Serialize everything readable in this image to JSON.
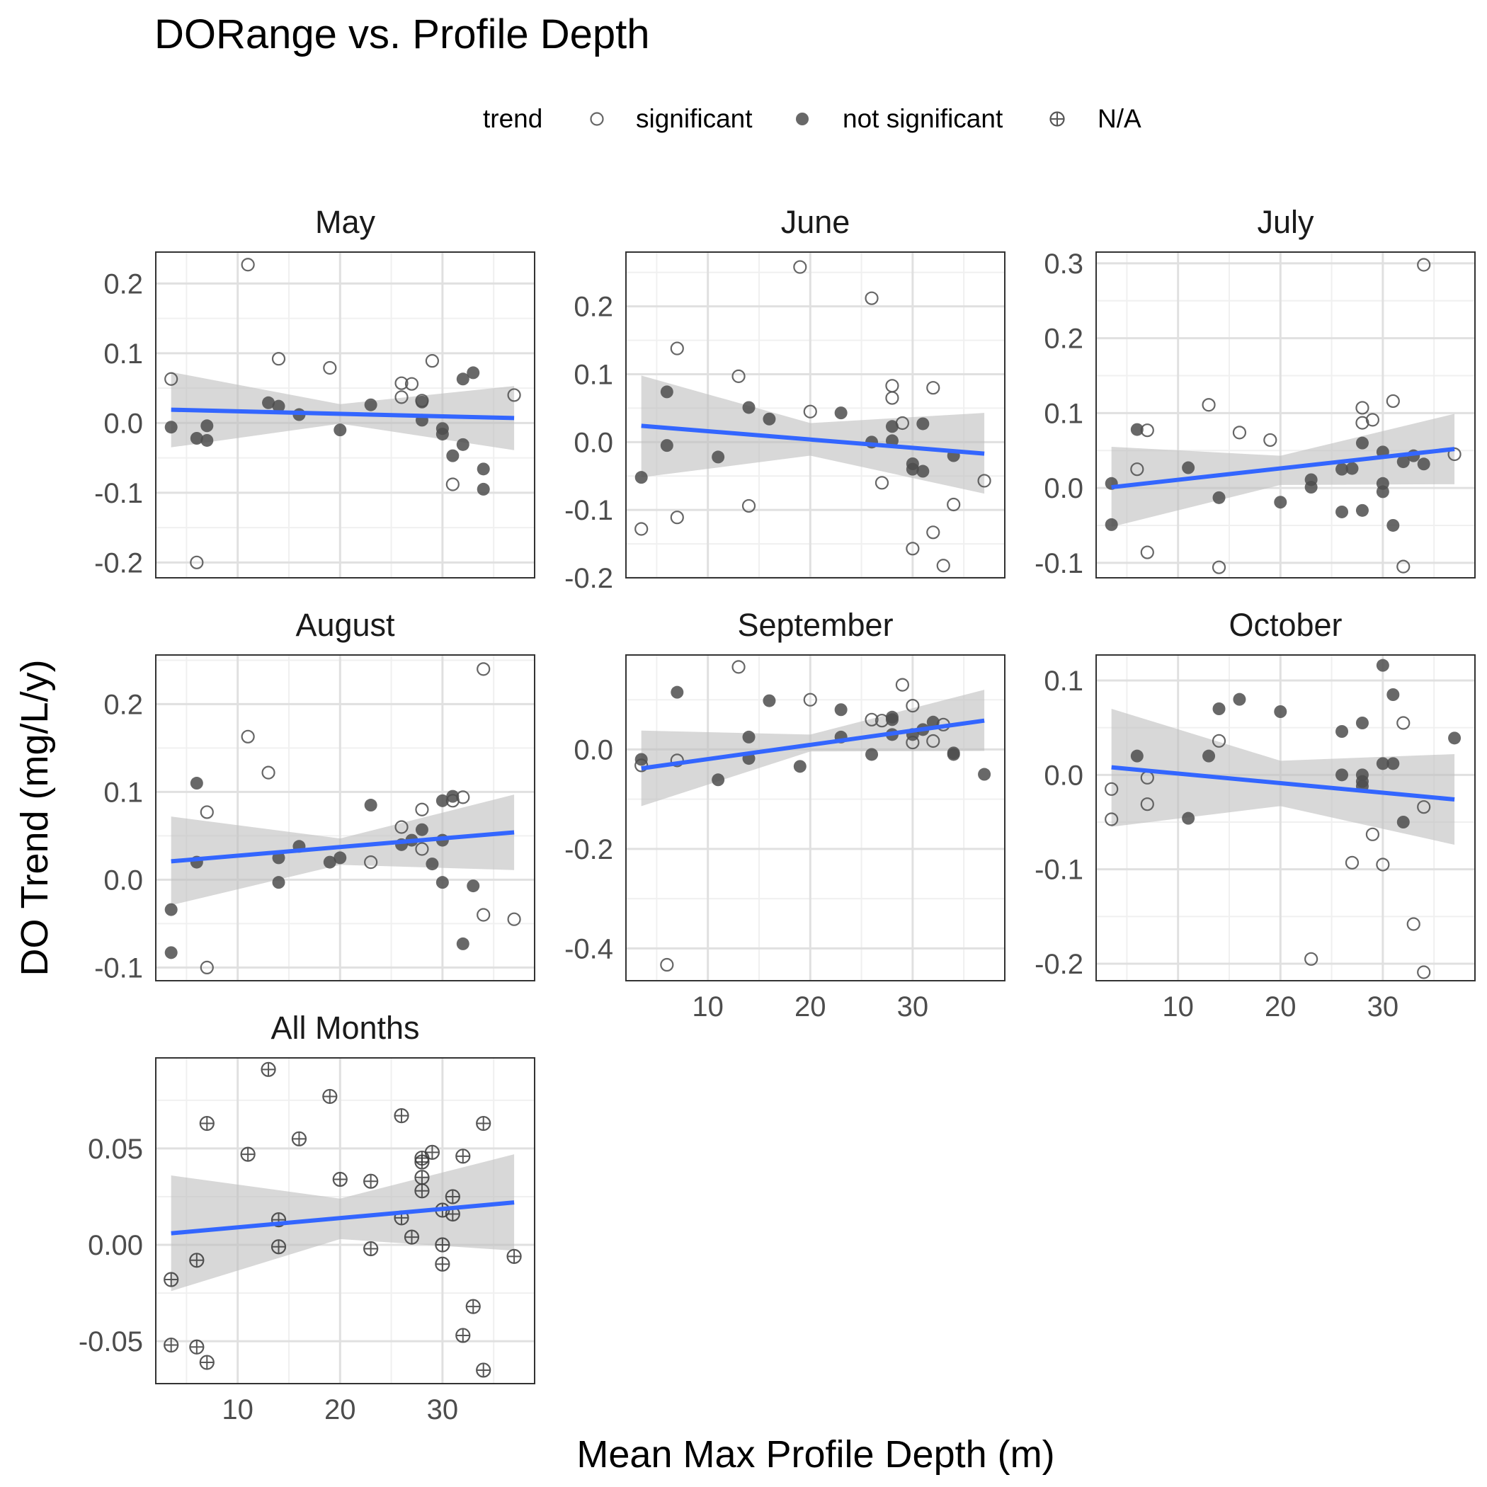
{
  "chart_data": {
    "type": "scatter",
    "title": "DORange vs. Profile Depth",
    "xlabel": "Mean Max Profile Depth (m)",
    "ylabel": "DO Trend (mg/L/y)",
    "legend": {
      "title": "trend",
      "position": "top",
      "entries": [
        {
          "label": "significant",
          "shape": "open-circle"
        },
        {
          "label": "not significant",
          "shape": "filled-circle"
        },
        {
          "label": "N/A",
          "shape": "crossed-circle"
        }
      ]
    },
    "grid": true,
    "fit": "linear regression with 95% confidence band",
    "xlim": [
      2,
      39
    ],
    "xticks": [
      10,
      20,
      30
    ],
    "facets": [
      {
        "name": "May",
        "ylim": [
          -0.222,
          0.245
        ],
        "yticks": [
          -0.2,
          -0.1,
          0.0,
          0.1,
          0.2
        ],
        "ytick_labels": [
          "-0.2",
          "-0.1",
          "0.0",
          "0.1",
          "0.2"
        ],
        "fit_line": [
          [
            3.5,
            0.019
          ],
          [
            37,
            0.007
          ]
        ],
        "fit_band": [
          [
            3.5,
            0.073,
            -0.035
          ],
          [
            20,
            0.027,
            -0.001
          ],
          [
            37,
            0.053,
            -0.039
          ]
        ],
        "significant": [
          [
            3.5,
            0.063
          ],
          [
            11,
            0.227
          ],
          [
            14,
            0.092
          ],
          [
            19,
            0.079
          ],
          [
            26,
            0.057
          ],
          [
            26,
            0.037
          ],
          [
            27,
            0.056
          ],
          [
            28,
            0.032
          ],
          [
            29,
            0.089
          ],
          [
            31,
            -0.088
          ],
          [
            37,
            0.04
          ],
          [
            6,
            -0.2
          ]
        ],
        "not_significant": [
          [
            3.5,
            -0.006
          ],
          [
            6,
            -0.022
          ],
          [
            7,
            -0.025
          ],
          [
            7,
            -0.004
          ],
          [
            13,
            0.029
          ],
          [
            14,
            0.024
          ],
          [
            16,
            0.012
          ],
          [
            20,
            -0.01
          ],
          [
            23,
            0.026
          ],
          [
            28,
            0.004
          ],
          [
            28,
            0.03
          ],
          [
            30,
            -0.008
          ],
          [
            30,
            -0.016
          ],
          [
            31,
            -0.047
          ],
          [
            32,
            0.063
          ],
          [
            32,
            -0.031
          ],
          [
            33,
            0.072
          ],
          [
            34,
            -0.066
          ],
          [
            34,
            -0.095
          ]
        ]
      },
      {
        "name": "June",
        "ylim": [
          -0.2,
          0.28
        ],
        "yticks": [
          -0.2,
          -0.1,
          0.0,
          0.1,
          0.2
        ],
        "ytick_labels": [
          "-0.2",
          "-0.1",
          "0.0",
          "0.1",
          "0.2"
        ],
        "fit_line": [
          [
            3.5,
            0.024
          ],
          [
            37,
            -0.017
          ]
        ],
        "fit_band": [
          [
            3.5,
            0.098,
            -0.052
          ],
          [
            20,
            0.028,
            -0.02
          ],
          [
            37,
            0.043,
            -0.076
          ]
        ],
        "significant": [
          [
            3.5,
            -0.128
          ],
          [
            7,
            0.138
          ],
          [
            7,
            -0.111
          ],
          [
            13,
            0.097
          ],
          [
            14,
            -0.094
          ],
          [
            19,
            0.258
          ],
          [
            20,
            0.045
          ],
          [
            26,
            0.212
          ],
          [
            27,
            -0.06
          ],
          [
            28,
            0.083
          ],
          [
            28,
            0.065
          ],
          [
            29,
            0.028
          ],
          [
            30,
            -0.157
          ],
          [
            32,
            0.08
          ],
          [
            32,
            -0.133
          ],
          [
            33,
            -0.182
          ],
          [
            34,
            -0.092
          ],
          [
            37,
            -0.057
          ]
        ],
        "not_significant": [
          [
            3.5,
            -0.052
          ],
          [
            6,
            0.074
          ],
          [
            6,
            -0.005
          ],
          [
            11,
            -0.022
          ],
          [
            14,
            0.051
          ],
          [
            16,
            0.034
          ],
          [
            23,
            0.043
          ],
          [
            26,
            0.0
          ],
          [
            28,
            0.002
          ],
          [
            28,
            0.023
          ],
          [
            30,
            -0.032
          ],
          [
            30,
            -0.04
          ],
          [
            31,
            0.027
          ],
          [
            31,
            -0.043
          ],
          [
            34,
            -0.02
          ]
        ]
      },
      {
        "name": "July",
        "ylim": [
          -0.12,
          0.315
        ],
        "yticks": [
          -0.1,
          0.0,
          0.1,
          0.2,
          0.3
        ],
        "ytick_labels": [
          "-0.1",
          "0.0",
          "0.1",
          "0.2",
          "0.3"
        ],
        "fit_line": [
          [
            3.5,
            0.001
          ],
          [
            37,
            0.052
          ]
        ],
        "fit_band": [
          [
            3.5,
            0.055,
            -0.052
          ],
          [
            20,
            0.043,
            0.004
          ],
          [
            37,
            0.099,
            0.005
          ]
        ],
        "significant": [
          [
            6,
            0.025
          ],
          [
            7,
            0.077
          ],
          [
            7,
            -0.086
          ],
          [
            13,
            0.111
          ],
          [
            14,
            -0.106
          ],
          [
            16,
            0.074
          ],
          [
            19,
            0.064
          ],
          [
            28,
            0.107
          ],
          [
            28,
            0.087
          ],
          [
            29,
            0.091
          ],
          [
            31,
            0.116
          ],
          [
            32,
            -0.105
          ],
          [
            34,
            0.298
          ],
          [
            37,
            0.045
          ]
        ],
        "not_significant": [
          [
            3.5,
            0.006
          ],
          [
            3.5,
            -0.049
          ],
          [
            6,
            0.078
          ],
          [
            11,
            0.027
          ],
          [
            14,
            -0.013
          ],
          [
            20,
            -0.019
          ],
          [
            23,
            0.001
          ],
          [
            23,
            0.011
          ],
          [
            26,
            -0.032
          ],
          [
            26,
            0.025
          ],
          [
            27,
            0.026
          ],
          [
            28,
            0.06
          ],
          [
            28,
            -0.03
          ],
          [
            30,
            0.048
          ],
          [
            30,
            0.006
          ],
          [
            30,
            -0.005
          ],
          [
            31,
            -0.05
          ],
          [
            32,
            0.035
          ],
          [
            33,
            0.043
          ],
          [
            34,
            0.032
          ]
        ]
      },
      {
        "name": "August",
        "ylim": [
          -0.115,
          0.256
        ],
        "yticks": [
          -0.1,
          0.0,
          0.1,
          0.2
        ],
        "ytick_labels": [
          "-0.1",
          "0.0",
          "0.1",
          "0.2"
        ],
        "fit_line": [
          [
            3.5,
            0.021
          ],
          [
            37,
            0.054
          ]
        ],
        "fit_band": [
          [
            3.5,
            0.072,
            -0.029
          ],
          [
            20,
            0.047,
            0.017
          ],
          [
            37,
            0.097,
            0.011
          ]
        ],
        "significant": [
          [
            7,
            0.077
          ],
          [
            7,
            -0.1
          ],
          [
            11,
            0.163
          ],
          [
            13,
            0.122
          ],
          [
            23,
            0.02
          ],
          [
            26,
            0.06
          ],
          [
            28,
            0.08
          ],
          [
            28,
            0.035
          ],
          [
            31,
            0.09
          ],
          [
            32,
            0.094
          ],
          [
            34,
            0.24
          ],
          [
            34,
            -0.04
          ],
          [
            37,
            -0.045
          ]
        ],
        "not_significant": [
          [
            3.5,
            -0.034
          ],
          [
            3.5,
            -0.083
          ],
          [
            6,
            0.11
          ],
          [
            6,
            0.02
          ],
          [
            14,
            0.025
          ],
          [
            14,
            -0.003
          ],
          [
            16,
            0.038
          ],
          [
            19,
            0.02
          ],
          [
            20,
            0.025
          ],
          [
            23,
            0.085
          ],
          [
            26,
            0.04
          ],
          [
            27,
            0.045
          ],
          [
            28,
            0.057
          ],
          [
            29,
            0.018
          ],
          [
            30,
            0.09
          ],
          [
            30,
            0.045
          ],
          [
            30,
            -0.003
          ],
          [
            31,
            0.095
          ],
          [
            32,
            -0.073
          ],
          [
            33,
            -0.007
          ]
        ]
      },
      {
        "name": "September",
        "ylim": [
          -0.465,
          0.19
        ],
        "yticks": [
          -0.4,
          -0.2,
          0.0
        ],
        "ytick_labels": [
          "-0.4",
          "-0.2",
          "0.0"
        ],
        "fit_line": [
          [
            3.5,
            -0.038
          ],
          [
            37,
            0.058
          ]
        ],
        "fit_band": [
          [
            3.5,
            0.038,
            -0.114
          ],
          [
            20,
            0.03,
            -0.004
          ],
          [
            37,
            0.12,
            -0.003
          ]
        ],
        "significant": [
          [
            3.5,
            -0.032
          ],
          [
            6,
            -0.433
          ],
          [
            7,
            -0.022
          ],
          [
            13,
            0.166
          ],
          [
            20,
            0.1
          ],
          [
            26,
            0.06
          ],
          [
            27,
            0.058
          ],
          [
            29,
            0.13
          ],
          [
            30,
            0.088
          ],
          [
            30,
            0.014
          ],
          [
            32,
            0.017
          ],
          [
            33,
            0.05
          ]
        ],
        "not_significant": [
          [
            3.5,
            -0.02
          ],
          [
            7,
            0.115
          ],
          [
            11,
            -0.061
          ],
          [
            14,
            0.025
          ],
          [
            14,
            -0.018
          ],
          [
            16,
            0.098
          ],
          [
            19,
            -0.034
          ],
          [
            23,
            0.08
          ],
          [
            23,
            0.025
          ],
          [
            26,
            -0.01
          ],
          [
            28,
            0.065
          ],
          [
            28,
            0.03
          ],
          [
            28,
            0.06
          ],
          [
            30,
            0.03
          ],
          [
            31,
            0.04
          ],
          [
            32,
            0.055
          ],
          [
            34,
            -0.01
          ],
          [
            34,
            -0.007
          ],
          [
            37,
            -0.05
          ]
        ]
      },
      {
        "name": "October",
        "ylim": [
          -0.218,
          0.127
        ],
        "yticks": [
          -0.2,
          -0.1,
          0.0,
          0.1
        ],
        "ytick_labels": [
          "-0.2",
          "-0.1",
          "0.0",
          "0.1"
        ],
        "fit_line": [
          [
            3.5,
            0.008
          ],
          [
            37,
            -0.026
          ]
        ],
        "fit_band": [
          [
            3.5,
            0.07,
            -0.055
          ],
          [
            20,
            0.015,
            -0.033
          ],
          [
            37,
            0.022,
            -0.074
          ]
        ],
        "significant": [
          [
            3.5,
            -0.015
          ],
          [
            3.5,
            -0.047
          ],
          [
            7,
            -0.003
          ],
          [
            7,
            -0.031
          ],
          [
            14,
            0.036
          ],
          [
            23,
            -0.195
          ],
          [
            27,
            -0.093
          ],
          [
            29,
            -0.063
          ],
          [
            30,
            -0.095
          ],
          [
            32,
            0.055
          ],
          [
            33,
            -0.158
          ],
          [
            34,
            -0.209
          ],
          [
            34,
            -0.034
          ]
        ],
        "not_significant": [
          [
            6,
            0.02
          ],
          [
            11,
            -0.046
          ],
          [
            13,
            0.02
          ],
          [
            14,
            0.07
          ],
          [
            16,
            0.08
          ],
          [
            20,
            0.067
          ],
          [
            26,
            0.046
          ],
          [
            26,
            0.0
          ],
          [
            28,
            0.055
          ],
          [
            28,
            0.0
          ],
          [
            28,
            -0.007
          ],
          [
            28,
            -0.012
          ],
          [
            30,
            0.116
          ],
          [
            30,
            0.012
          ],
          [
            31,
            0.085
          ],
          [
            31,
            0.012
          ],
          [
            32,
            -0.05
          ],
          [
            37,
            0.039
          ]
        ]
      },
      {
        "name": "All Months",
        "ylim": [
          -0.072,
          0.097
        ],
        "yticks": [
          -0.05,
          0.0,
          0.05
        ],
        "ytick_labels": [
          "-0.05",
          "0.00",
          "0.05"
        ],
        "fit_line": [
          [
            3.5,
            0.006
          ],
          [
            37,
            0.022
          ]
        ],
        "fit_band": [
          [
            3.5,
            0.036,
            -0.024
          ],
          [
            20,
            0.024,
            0.003
          ],
          [
            37,
            0.047,
            -0.003
          ]
        ],
        "na": [
          [
            3.5,
            -0.018
          ],
          [
            3.5,
            -0.052
          ],
          [
            6,
            -0.008
          ],
          [
            6,
            -0.053
          ],
          [
            7,
            0.063
          ],
          [
            7,
            -0.061
          ],
          [
            11,
            0.047
          ],
          [
            13,
            0.091
          ],
          [
            14,
            0.013
          ],
          [
            14,
            -0.001
          ],
          [
            16,
            0.055
          ],
          [
            19,
            0.077
          ],
          [
            20,
            0.034
          ],
          [
            23,
            0.033
          ],
          [
            23,
            -0.002
          ],
          [
            26,
            0.067
          ],
          [
            26,
            0.014
          ],
          [
            27,
            0.004
          ],
          [
            28,
            0.045
          ],
          [
            28,
            0.043
          ],
          [
            28,
            0.035
          ],
          [
            28,
            0.028
          ],
          [
            29,
            0.048
          ],
          [
            30,
            0.018
          ],
          [
            30,
            0.0
          ],
          [
            30,
            -0.01
          ],
          [
            31,
            0.025
          ],
          [
            31,
            0.016
          ],
          [
            32,
            0.046
          ],
          [
            32,
            -0.047
          ],
          [
            33,
            -0.032
          ],
          [
            34,
            0.063
          ],
          [
            34,
            -0.065
          ],
          [
            37,
            -0.006
          ]
        ]
      }
    ]
  },
  "colors": {
    "fit_line": "#3366ff",
    "ci_band": "#bebebe",
    "point_fill": "#4d4d4d",
    "panel_border": "#333333",
    "grid_major": "#e0e0e0",
    "grid_minor": "#f0f0f0"
  }
}
